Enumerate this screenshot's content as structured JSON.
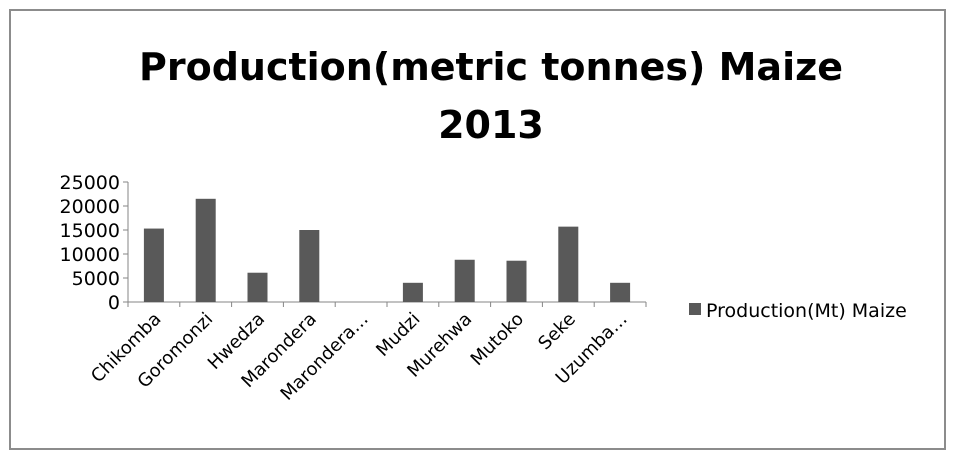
{
  "chart_data": {
    "type": "bar",
    "title_lines": [
      "Production(metric tonnes) Maize",
      "2013"
    ],
    "categories": [
      "Chikomba",
      "Goromonzi",
      "Hwedza",
      "Marondera",
      "Marondera…",
      "Mudzi",
      "Murehwa",
      "Mutoko",
      "Seke",
      "Uzumba…"
    ],
    "series": [
      {
        "name": "Production(Mt) Maize",
        "color": "#595959",
        "values": [
          15300,
          21500,
          6100,
          15000,
          0,
          4000,
          8800,
          8600,
          15700,
          4000
        ]
      }
    ],
    "yticks": [
      0,
      5000,
      10000,
      15000,
      20000,
      25000
    ],
    "ylim": [
      0,
      25000
    ],
    "grid": false,
    "legend_position": "right",
    "xlabel": "",
    "ylabel": ""
  }
}
